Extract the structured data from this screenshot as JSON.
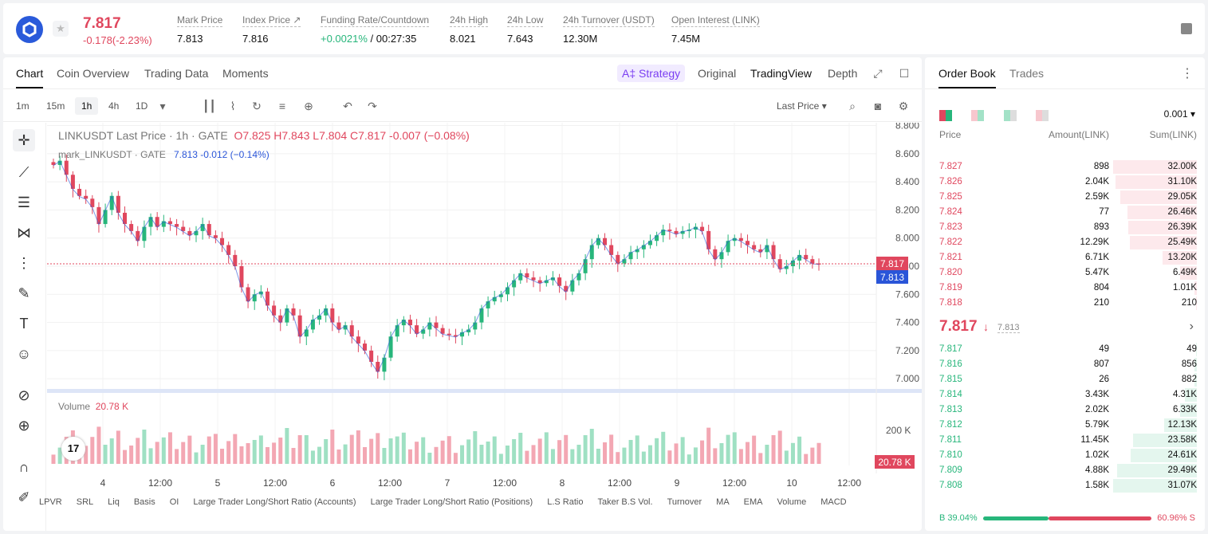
{
  "header": {
    "last_price": "7.817",
    "change": "-0.178(-2.23%)",
    "stats": [
      {
        "label": "Mark Price",
        "value": "7.813"
      },
      {
        "label": "Index Price ↗",
        "value": "7.816"
      },
      {
        "label": "Funding Rate/Countdown",
        "value_green": "+0.0021%",
        "value_rest": " / 00:27:35"
      },
      {
        "label": "24h High",
        "value": "8.021"
      },
      {
        "label": "24h Low",
        "value": "7.643"
      },
      {
        "label": "24h Turnover (USDT)",
        "value": "12.30M"
      },
      {
        "label": "Open Interest (LINK)",
        "value": "7.45M"
      }
    ]
  },
  "chart_tabs": [
    "Chart",
    "Coin Overview",
    "Trading Data",
    "Moments"
  ],
  "chart_modes": {
    "strategy": "A‡ Strategy",
    "original": "Original",
    "tradingview": "TradingView",
    "depth": "Depth"
  },
  "timeframes": [
    "1m",
    "15m",
    "1h",
    "4h",
    "1D"
  ],
  "last_price_selector": "Last Price ▾",
  "legend": {
    "line1_prefix": "LINKUSDT Last Price · 1h · GATE",
    "ohlc": "O7.825  H7.843  L7.804  C7.817  -0.007 (−0.08%)",
    "line2_prefix": "mark_LINKUSDT · GATE",
    "mark": "7.813  -0.012 (−0.14%)"
  },
  "volume_legend": {
    "label": "Volume",
    "value": "20.78 K"
  },
  "chart_data": {
    "type": "candlestick",
    "y_ticks": [
      "8.800",
      "8.600",
      "8.400",
      "8.200",
      "8.000",
      "7.800",
      "7.600",
      "7.400",
      "7.200",
      "7.000"
    ],
    "ylim": [
      6.95,
      8.82
    ],
    "x_ticks": [
      "4",
      "12:00",
      "5",
      "12:00",
      "6",
      "12:00",
      "7",
      "12:00",
      "8",
      "12:00",
      "9",
      "12:00",
      "10",
      "12:00"
    ],
    "last_price_tag": "7.817",
    "mark_price_tag": "7.813",
    "volume_axis_tick": "200 K",
    "volume_tag": "20.78 K",
    "close_path": [
      8.52,
      8.55,
      8.45,
      8.35,
      8.3,
      8.28,
      8.22,
      8.1,
      8.2,
      8.3,
      8.18,
      8.1,
      8.05,
      7.98,
      8.08,
      8.15,
      8.08,
      8.12,
      8.1,
      8.08,
      8.05,
      8.02,
      8.05,
      8.1,
      8.02,
      8.0,
      7.95,
      7.88,
      7.8,
      7.65,
      7.55,
      7.6,
      7.62,
      7.52,
      7.45,
      7.4,
      7.5,
      7.45,
      7.3,
      7.35,
      7.42,
      7.45,
      7.5,
      7.4,
      7.35,
      7.38,
      7.3,
      7.25,
      7.2,
      7.12,
      7.05,
      7.15,
      7.3,
      7.38,
      7.42,
      7.38,
      7.32,
      7.35,
      7.4,
      7.36,
      7.32,
      7.31,
      7.3,
      7.33,
      7.35,
      7.4,
      7.5,
      7.55,
      7.58,
      7.6,
      7.65,
      7.7,
      7.75,
      7.72,
      7.7,
      7.68,
      7.7,
      7.72,
      7.66,
      7.62,
      7.7,
      7.75,
      7.85,
      7.95,
      8.0,
      7.95,
      7.88,
      7.82,
      7.85,
      7.9,
      7.92,
      7.95,
      7.98,
      8.02,
      8.06,
      8.05,
      8.03,
      8.05,
      8.06,
      8.08,
      8.05,
      7.92,
      7.85,
      7.9,
      7.98,
      8.0,
      7.98,
      7.95,
      7.92,
      7.9,
      7.95,
      7.85,
      7.78,
      7.8,
      7.84,
      7.88,
      7.85,
      7.82,
      7.817
    ]
  },
  "bottom_indicators": [
    "LPVR",
    "SRL",
    "Liq",
    "Basis",
    "OI",
    "Large Trader Long/Short Ratio (Accounts)",
    "Large Trader Long/Short Ratio (Positions)",
    "L.S Ratio",
    "Taker B.S Vol.",
    "Turnover",
    "MA",
    "EMA",
    "Volume",
    "MACD"
  ],
  "orderbook": {
    "tabs": [
      "Order Book",
      "Trades"
    ],
    "precision": "0.001 ▾",
    "headers": {
      "price": "Price",
      "amount": "Amount(LINK)",
      "sum": "Sum(LINK)"
    },
    "asks": [
      {
        "price": "7.827",
        "amount": "898",
        "sum": "32.00K",
        "depth": 1.0
      },
      {
        "price": "7.826",
        "amount": "2.04K",
        "sum": "31.10K",
        "depth": 0.97
      },
      {
        "price": "7.825",
        "amount": "2.59K",
        "sum": "29.05K",
        "depth": 0.91
      },
      {
        "price": "7.824",
        "amount": "77",
        "sum": "26.46K",
        "depth": 0.83
      },
      {
        "price": "7.823",
        "amount": "893",
        "sum": "26.39K",
        "depth": 0.82
      },
      {
        "price": "7.822",
        "amount": "12.29K",
        "sum": "25.49K",
        "depth": 0.8
      },
      {
        "price": "7.821",
        "amount": "6.71K",
        "sum": "13.20K",
        "depth": 0.41
      },
      {
        "price": "7.820",
        "amount": "5.47K",
        "sum": "6.49K",
        "depth": 0.2
      },
      {
        "price": "7.819",
        "amount": "804",
        "sum": "1.01K",
        "depth": 0.03
      },
      {
        "price": "7.818",
        "amount": "210",
        "sum": "210",
        "depth": 0.01
      }
    ],
    "mid_price": "7.817",
    "mid_arrow": "↓",
    "mid_mark": "7.813",
    "bids": [
      {
        "price": "7.817",
        "amount": "49",
        "sum": "49",
        "depth": 0.01
      },
      {
        "price": "7.816",
        "amount": "807",
        "sum": "856",
        "depth": 0.03
      },
      {
        "price": "7.815",
        "amount": "26",
        "sum": "882",
        "depth": 0.03
      },
      {
        "price": "7.814",
        "amount": "3.43K",
        "sum": "4.31K",
        "depth": 0.14
      },
      {
        "price": "7.813",
        "amount": "2.02K",
        "sum": "6.33K",
        "depth": 0.2
      },
      {
        "price": "7.812",
        "amount": "5.79K",
        "sum": "12.13K",
        "depth": 0.39
      },
      {
        "price": "7.811",
        "amount": "11.45K",
        "sum": "23.58K",
        "depth": 0.76
      },
      {
        "price": "7.810",
        "amount": "1.02K",
        "sum": "24.61K",
        "depth": 0.79
      },
      {
        "price": "7.809",
        "amount": "4.88K",
        "sum": "29.49K",
        "depth": 0.95
      },
      {
        "price": "7.808",
        "amount": "1.58K",
        "sum": "31.07K",
        "depth": 1.0
      }
    ],
    "buy_ratio": "B 39.04%",
    "sell_ratio": "60.96% S",
    "buy_fraction": 0.3904
  },
  "colors": {
    "up": "#27b67b",
    "down": "#e0475e",
    "mark": "#2a55d8",
    "accent": "#7b3ff2"
  }
}
